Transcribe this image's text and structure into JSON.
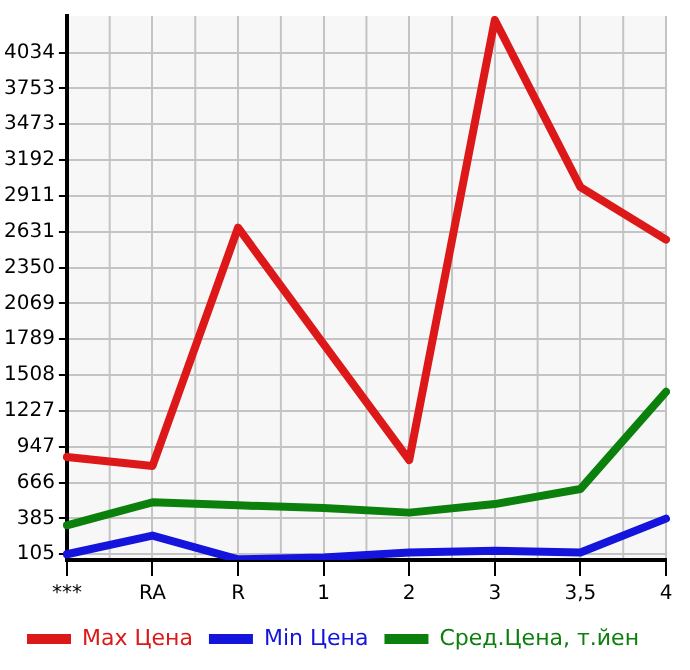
{
  "chart_data": {
    "type": "line",
    "categories": [
      "***",
      "RA",
      "R",
      "1",
      "2",
      "3",
      "3,5",
      "4"
    ],
    "series": [
      {
        "name": "Max Цена",
        "color": "#dd1818",
        "values": [
          866,
          796,
          2662,
          1750,
          843,
          4289,
          2980,
          2569
        ]
      },
      {
        "name": "Min Цена",
        "color": "#1414dd",
        "values": [
          105,
          251,
          65,
          80,
          119,
          133,
          119,
          384
        ]
      },
      {
        "name": "Сред.Цена, т.йен",
        "color": "#0c800c",
        "values": [
          332,
          512,
          488,
          467,
          431,
          498,
          616,
          1377
        ]
      }
    ],
    "ylim": [
      60,
      4320
    ],
    "yticks": [
      105,
      385,
      666,
      947,
      1227,
      1508,
      1789,
      2069,
      2350,
      2631,
      2911,
      3192,
      3473,
      3753,
      4034
    ],
    "grid": true,
    "legend": "bottom",
    "marker": "none",
    "line_style": "solid"
  }
}
